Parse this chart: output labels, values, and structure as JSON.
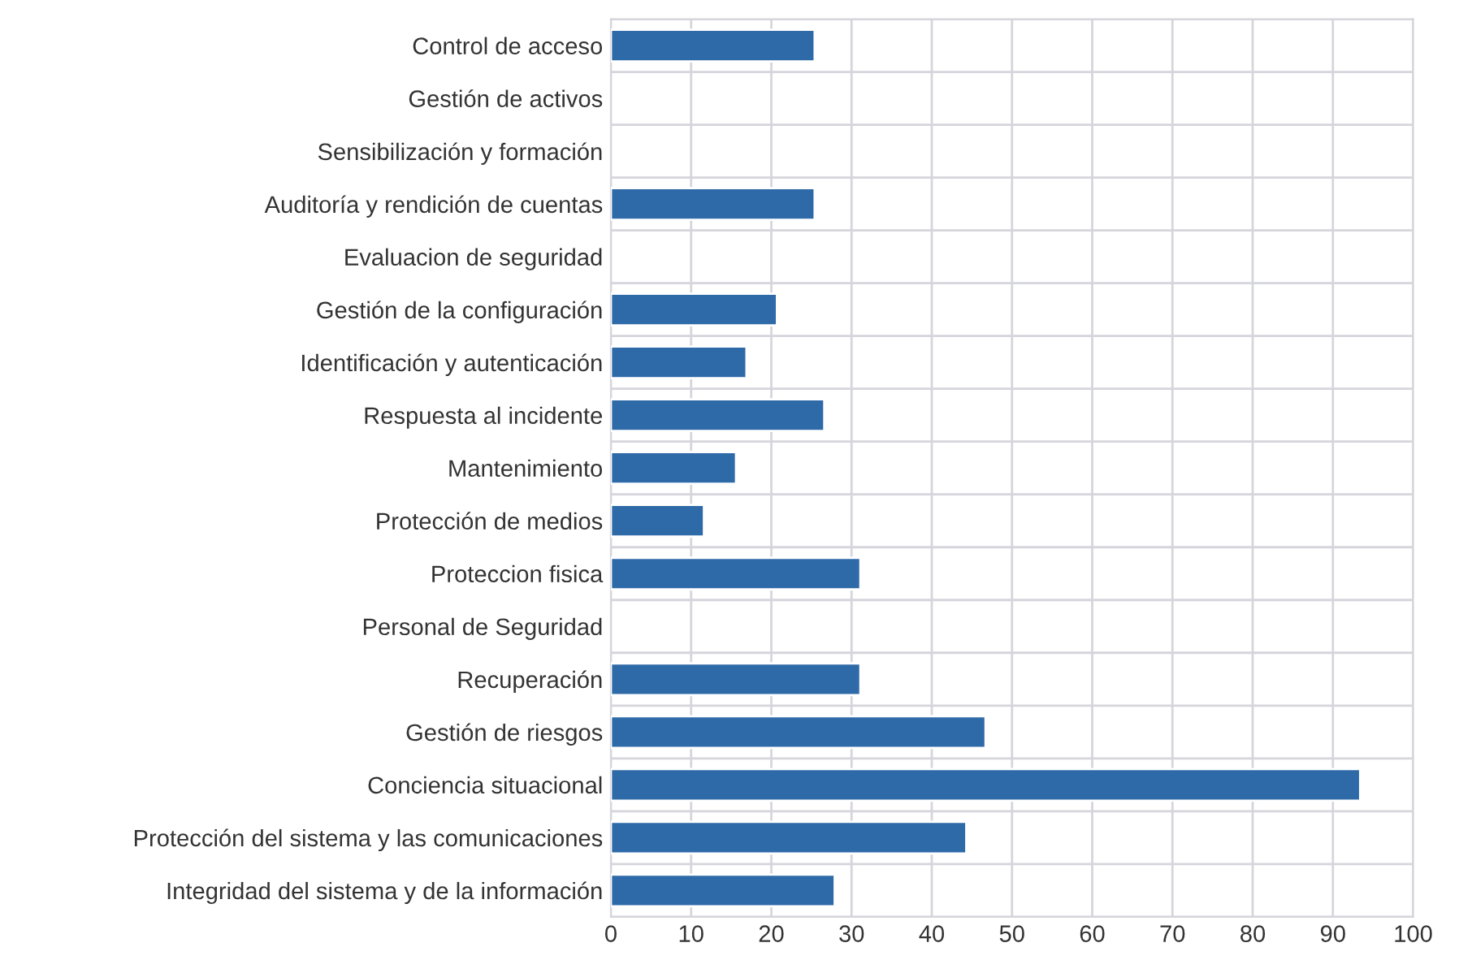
{
  "chart_data": {
    "type": "bar",
    "orientation": "horizontal",
    "categories": [
      "Control de acceso",
      "Gestión de activos",
      "Sensibilización y formación",
      "Auditoría y rendición de cuentas",
      "Evaluacion de seguridad",
      "Gestión de la configuración",
      "Identificación y autenticación",
      "Respuesta al incidente",
      "Mantenimiento",
      "Protección de medios",
      "Proteccion fisica",
      "Personal de Seguridad",
      "Recuperación",
      "Gestión de riesgos",
      "Conciencia situacional",
      "Protección del sistema y las comunicaciones",
      "Integridad del sistema y de la información"
    ],
    "values": [
      25.4,
      null,
      null,
      25.4,
      null,
      20.7,
      16.9,
      26.6,
      15.6,
      11.6,
      31.1,
      null,
      31.1,
      46.7,
      93.4,
      44.3,
      27.9
    ],
    "color": "#2f6aa8",
    "xlim": [
      0,
      100
    ],
    "xticks": [
      0,
      10,
      20,
      30,
      40,
      50,
      60,
      70,
      80,
      90,
      100
    ],
    "grid": true,
    "legend": false
  }
}
